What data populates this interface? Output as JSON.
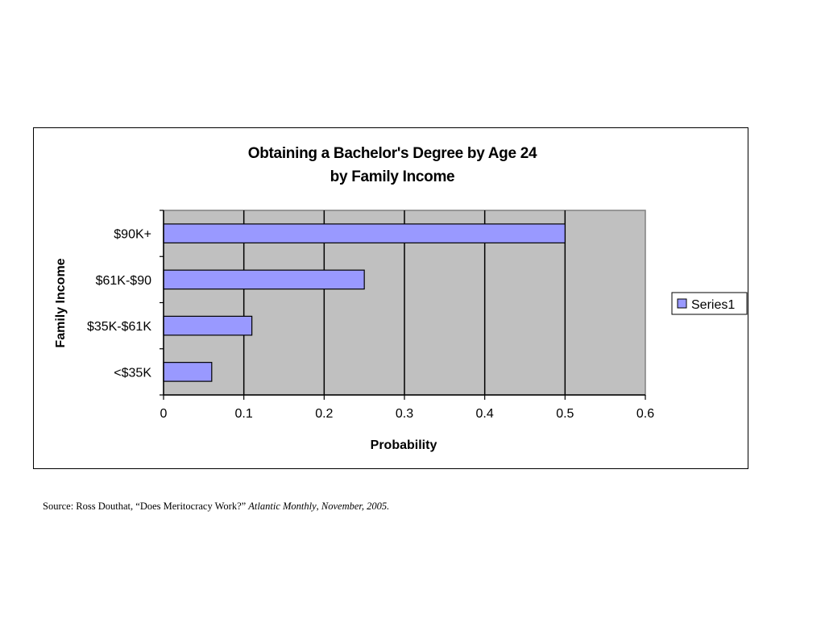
{
  "chart_data": {
    "type": "bar",
    "orientation": "horizontal",
    "title": [
      "Obtaining a Bachelor's Degree by Age 24",
      "by Family Income"
    ],
    "xlabel": "Probability",
    "ylabel": "Family Income",
    "categories": [
      "<$35K",
      "$35K-$61K",
      "$61K-$90",
      "$90K+"
    ],
    "series": [
      {
        "name": "Series1",
        "values": [
          0.06,
          0.11,
          0.25,
          0.5
        ],
        "color": "#9999ff"
      }
    ],
    "xlim": [
      0,
      0.6
    ],
    "xticks": [
      "0",
      "0.1",
      "0.2",
      "0.3",
      "0.4",
      "0.5",
      "0.6"
    ],
    "grid": "vertical",
    "plot_background": "#c0c0c0",
    "legend": "right"
  },
  "source": {
    "prefix": "Source: Ross Douthat, “Does Meritocracy Work?” ",
    "publication": "Atlantic Monthly",
    "separator": ", ",
    "date": "November, 2005."
  }
}
